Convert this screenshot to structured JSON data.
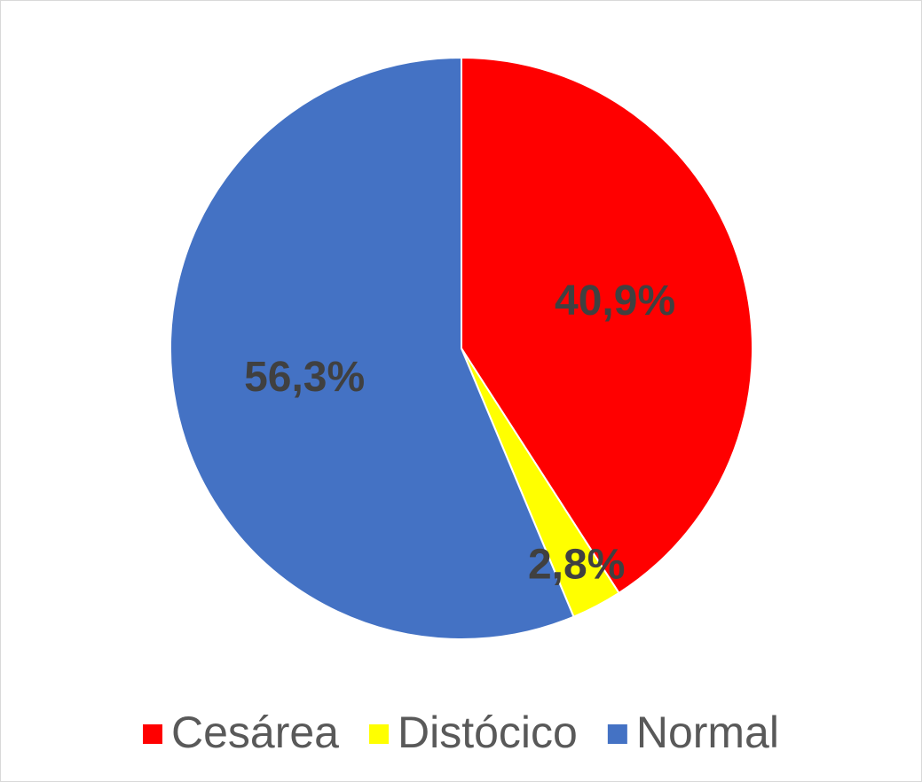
{
  "chart_data": {
    "type": "pie",
    "categories": [
      "Cesárea",
      "Distócico",
      "Normal"
    ],
    "values": [
      40.9,
      2.8,
      56.3
    ],
    "value_labels": [
      "40,9%",
      "2,8%",
      "56,3%"
    ],
    "colors": [
      "#ff0000",
      "#ffff00",
      "#4472c4"
    ],
    "legend": "bottom"
  }
}
